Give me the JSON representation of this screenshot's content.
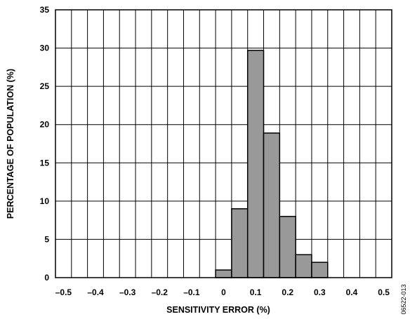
{
  "chart_data": {
    "type": "bar",
    "xlabel": "SENSITIVITY ERROR (%)",
    "ylabel": "PERCENTAGE OF POPULATION (%)",
    "xlim": [
      -0.525,
      0.525
    ],
    "ylim": [
      0,
      35
    ],
    "grid": true,
    "x_ticks": [
      -0.5,
      -0.4,
      -0.3,
      -0.2,
      -0.1,
      0,
      0.1,
      0.2,
      0.3,
      0.4,
      0.5
    ],
    "x_tick_labels": [
      "–0.5",
      "–0.4",
      "–0.3",
      "–0.2",
      "–0.1",
      "0",
      "0.1",
      "0.2",
      "0.3",
      "0.4",
      "0.5"
    ],
    "y_ticks": [
      0,
      5,
      10,
      15,
      20,
      25,
      30,
      35
    ],
    "y_tick_labels": [
      "0",
      "5",
      "10",
      "15",
      "20",
      "25",
      "30",
      "35"
    ],
    "bin_width": 0.05,
    "bins": [
      {
        "x_start": -0.025,
        "x_end": 0.025,
        "value": 1
      },
      {
        "x_start": 0.025,
        "x_end": 0.075,
        "value": 9
      },
      {
        "x_start": 0.075,
        "x_end": 0.125,
        "value": 29.7
      },
      {
        "x_start": 0.125,
        "x_end": 0.175,
        "value": 18.9
      },
      {
        "x_start": 0.175,
        "x_end": 0.225,
        "value": 8
      },
      {
        "x_start": 0.225,
        "x_end": 0.275,
        "value": 3
      },
      {
        "x_start": 0.275,
        "x_end": 0.325,
        "value": 2
      }
    ],
    "bar_color": "#999999",
    "bar_edge_color": "#000000"
  },
  "figure_id": "06522-013"
}
